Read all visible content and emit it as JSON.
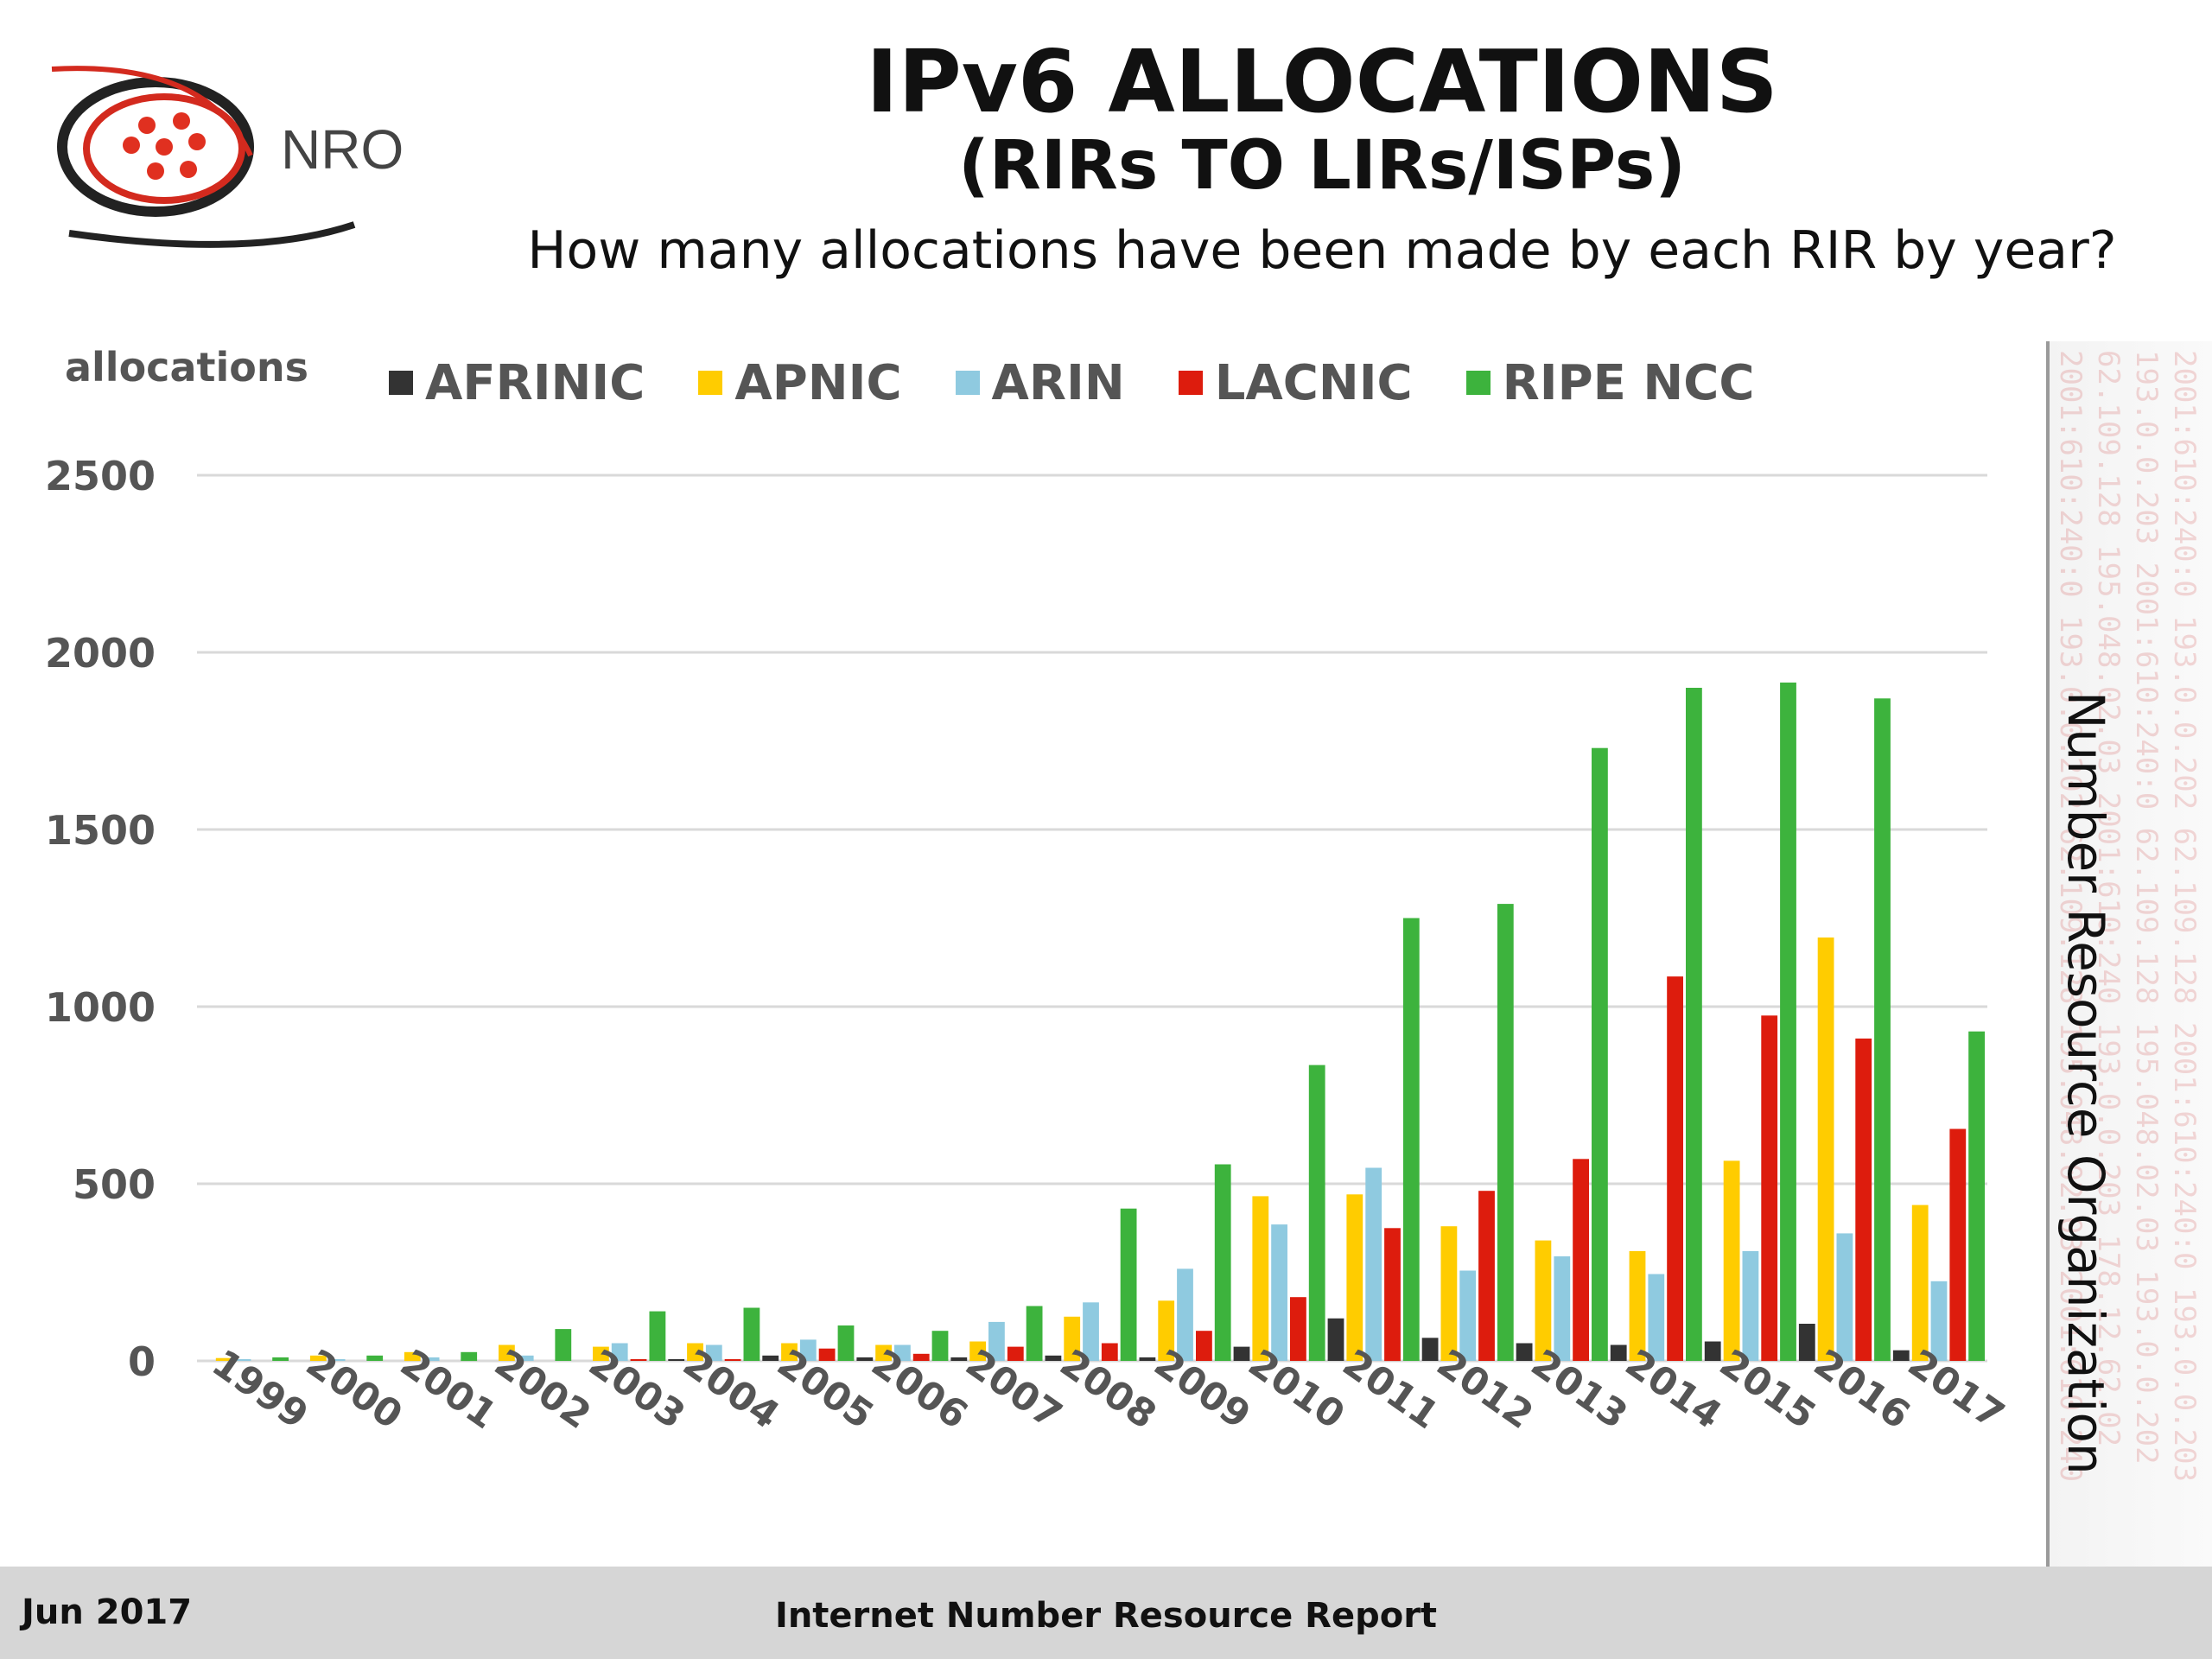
{
  "logo": {
    "text": "NRO"
  },
  "header": {
    "title": "IPv6 ALLOCATIONS",
    "subtitle": "(RIRs TO LIRs/ISPs)",
    "question": "How many allocations have been made by each RIR by year?"
  },
  "side_label": "Number Resource Organization",
  "watermark": [
    "2001:610:240:0  193.0.0.202  62.109.128  195.048.02.03  2001:610:240",
    "62.109.128  195.048.02.03  2001:610:240  193.0.0.203  178.12.62.02",
    "193.0.0.203  2001:610:240:0  62.109.128  195.048.02.03  193.0.0.202",
    "2001:610:240:0  193.0.0.202  62.109.128  2001:610:240:0  193.0.0.203"
  ],
  "colors": {
    "AFRINIC": "#333333",
    "APNIC": "#ffcc00",
    "ARIN": "#8fcae0",
    "LACNIC": "#dd1c0d",
    "RIPE NCC": "#3db33d",
    "grid": "#d9d9d9",
    "axis_text": "#555555"
  },
  "chart_data": {
    "type": "bar",
    "title": "IPv6 ALLOCATIONS",
    "ylabel": "allocations",
    "xlabel": "",
    "ylim": [
      0,
      2500
    ],
    "yticks": [
      0,
      500,
      1000,
      1500,
      2000,
      2500
    ],
    "grid": true,
    "legend_position": "top",
    "categories": [
      "1999",
      "2000",
      "2001",
      "2002",
      "2003",
      "2004",
      "2005",
      "2006",
      "2007",
      "2008",
      "2009",
      "2010",
      "2011",
      "2012",
      "2013",
      "2014",
      "2015",
      "2016",
      "2017"
    ],
    "series": [
      {
        "name": "AFRINIC",
        "values": [
          0,
          0,
          0,
          0,
          0,
          5,
          15,
          10,
          10,
          15,
          10,
          40,
          120,
          65,
          50,
          45,
          55,
          105,
          30
        ]
      },
      {
        "name": "APNIC",
        "values": [
          8,
          15,
          25,
          45,
          40,
          50,
          50,
          45,
          55,
          125,
          170,
          465,
          470,
          380,
          340,
          310,
          565,
          1195,
          440
        ]
      },
      {
        "name": "ARIN",
        "values": [
          5,
          5,
          10,
          15,
          50,
          45,
          60,
          45,
          110,
          165,
          260,
          385,
          545,
          255,
          295,
          245,
          310,
          360,
          225
        ]
      },
      {
        "name": "LACNIC",
        "values": [
          0,
          0,
          0,
          0,
          5,
          5,
          35,
          20,
          40,
          50,
          85,
          180,
          375,
          480,
          570,
          1085,
          975,
          910,
          655
        ]
      },
      {
        "name": "RIPE NCC",
        "values": [
          10,
          15,
          25,
          90,
          140,
          150,
          100,
          85,
          155,
          430,
          555,
          835,
          1250,
          1290,
          1730,
          1900,
          1915,
          1870,
          930
        ]
      }
    ]
  },
  "footer": {
    "date": "Jun 2017",
    "report": "Internet Number Resource Report"
  }
}
